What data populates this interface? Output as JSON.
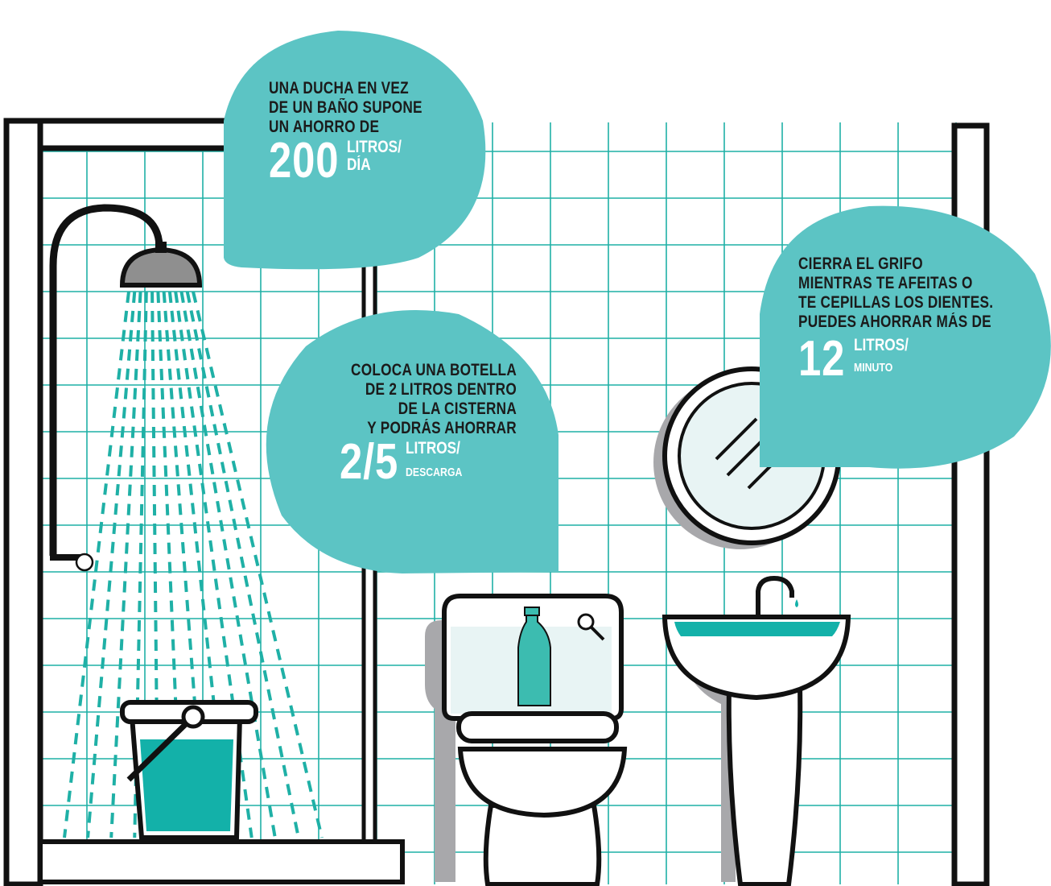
{
  "colors": {
    "teal": "#5cc4c4",
    "water": "#13b1a9",
    "tile": "#1fb0a6",
    "outline": "#111111",
    "shadow": "#a8a8ab"
  },
  "tips": {
    "shower": {
      "lines": [
        "UNA DUCHA EN VEZ",
        "DE UN BAÑO SUPONE",
        "UN AHORRO DE"
      ],
      "amount": "200",
      "unit_top": "LITROS/",
      "unit_bottom": "DÍA"
    },
    "toilet": {
      "lines": [
        "COLOCA UNA BOTELLA",
        "DE 2 LITROS DENTRO",
        "DE LA CISTERNA",
        "Y PODRÁS AHORRAR"
      ],
      "amount": "2/5",
      "unit_top": "LITROS/",
      "unit_bottom": "DESCARGA"
    },
    "sink": {
      "lines": [
        "CIERRA EL GRIFO",
        "MIENTRAS TE AFEITAS O",
        "TE CEPILLAS LOS DIENTES.",
        "PUEDES AHORRAR MÁS DE"
      ],
      "amount": "12",
      "unit_top": "LITROS/",
      "unit_bottom": "MINUTO"
    }
  },
  "icons": [
    "shower-head-icon",
    "bucket-icon",
    "toilet-icon",
    "bottle-icon",
    "sink-icon",
    "faucet-icon",
    "mirror-icon"
  ]
}
